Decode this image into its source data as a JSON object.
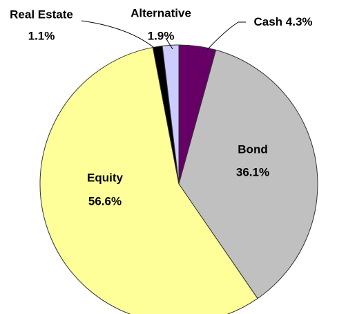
{
  "chart_data": {
    "type": "pie",
    "categories": [
      "Cash",
      "Bond",
      "Equity",
      "Real Estate",
      "Alternative"
    ],
    "values": [
      4.3,
      36.1,
      56.6,
      1.1,
      1.9
    ],
    "value_labels": [
      "4.3%",
      "36.1%",
      "56.6%",
      "1.1%",
      "1.9%"
    ],
    "colors": [
      "#660066",
      "#c0c0c0",
      "#ffff99",
      "#000000",
      "#ccccff"
    ]
  }
}
